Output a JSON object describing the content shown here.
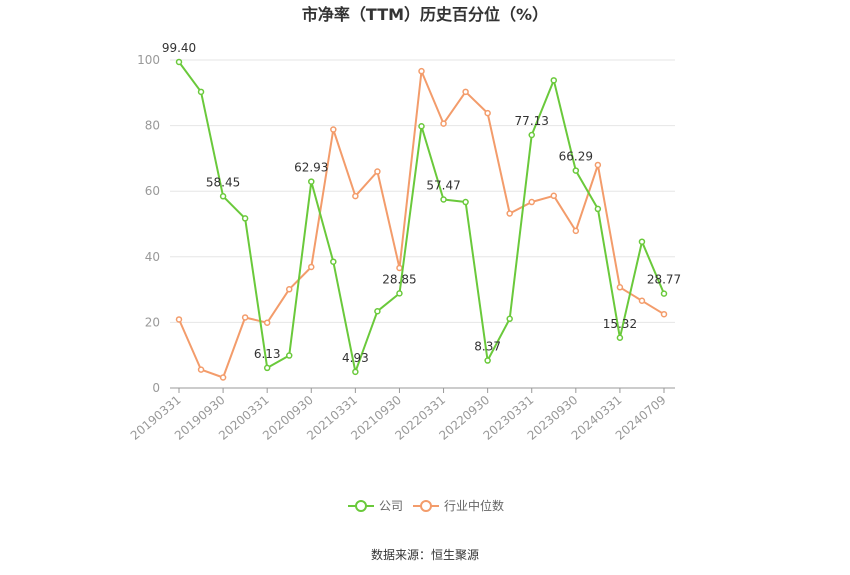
{
  "chart_data": {
    "type": "line",
    "title": "市净率（TTM）历史百分位（%）",
    "source": "数据来源：恒生聚源",
    "ylim": [
      0,
      100
    ],
    "yticks": [
      0,
      20,
      40,
      60,
      80,
      100
    ],
    "xtick_labels": [
      "20190331",
      "20190930",
      "20200331",
      "20200930",
      "20210331",
      "20210930",
      "20220331",
      "20220930",
      "20230331",
      "20230930",
      "20240331",
      "20240709"
    ],
    "legend_position": "bottom",
    "grid": true,
    "series": [
      {
        "name": "公司",
        "color": "#6ac93b",
        "values": [
          99.4,
          90.3,
          58.45,
          51.7,
          6.13,
          9.9,
          62.93,
          38.5,
          4.93,
          23.4,
          28.85,
          79.8,
          57.47,
          56.7,
          8.37,
          21.1,
          77.13,
          93.8,
          66.29,
          54.6,
          15.32,
          44.6,
          28.77
        ],
        "labels": {
          "0": "99.40",
          "2": "58.45",
          "4": "6.13",
          "6": "62.93",
          "8": "4.93",
          "10": "28.85",
          "12": "57.47",
          "14": "8.37",
          "16": "77.13",
          "18": "66.29",
          "20": "15.32",
          "22": "28.77"
        }
      },
      {
        "name": "行业中位数",
        "color": "#f39c6b",
        "values": [
          20.9,
          5.6,
          3.2,
          21.5,
          19.9,
          30.1,
          36.9,
          78.8,
          58.5,
          66.0,
          36.6,
          96.6,
          80.6,
          90.3,
          83.8,
          53.2,
          56.7,
          58.6,
          47.9,
          68.0,
          30.7,
          26.6,
          22.5
        ]
      }
    ]
  }
}
